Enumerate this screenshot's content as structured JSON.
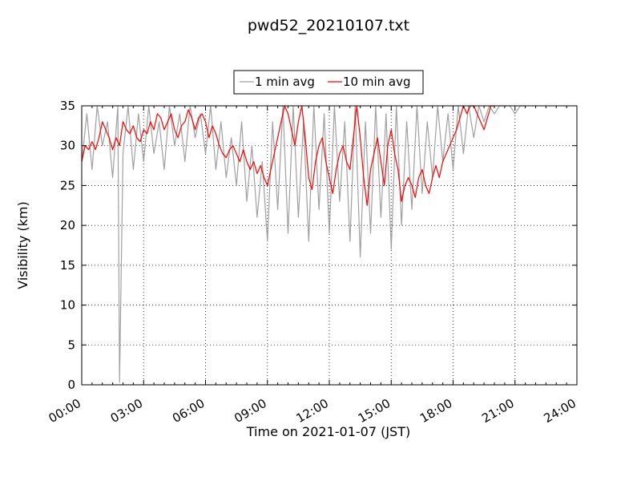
{
  "chart_data": {
    "type": "line",
    "title": "pwd52_20210107.txt",
    "xlabel": "Time on 2021-01-07 (JST)",
    "ylabel": "Visibility (km)",
    "xlim": [
      "00:00",
      "24:00"
    ],
    "ylim": [
      0,
      35
    ],
    "x_ticks": [
      "00:00",
      "03:00",
      "06:00",
      "09:00",
      "12:00",
      "15:00",
      "18:00",
      "21:00",
      "24:00"
    ],
    "y_ticks": [
      0,
      5,
      10,
      15,
      20,
      25,
      30,
      35
    ],
    "grid": true,
    "legend_position": "top-center",
    "series": [
      {
        "name": "1 min avg",
        "color": "#a0a0a0",
        "x": [
          "00:00",
          "00:15",
          "00:30",
          "00:45",
          "01:00",
          "01:15",
          "01:30",
          "01:45",
          "01:50",
          "02:00",
          "02:15",
          "02:30",
          "02:45",
          "03:00",
          "03:15",
          "03:30",
          "03:45",
          "04:00",
          "04:15",
          "04:30",
          "04:45",
          "05:00",
          "05:15",
          "05:30",
          "05:45",
          "06:00",
          "06:15",
          "06:30",
          "06:45",
          "07:00",
          "07:15",
          "07:30",
          "07:45",
          "08:00",
          "08:15",
          "08:30",
          "08:45",
          "09:00",
          "09:15",
          "09:30",
          "09:45",
          "10:00",
          "10:15",
          "10:30",
          "10:45",
          "11:00",
          "11:15",
          "11:30",
          "11:45",
          "12:00",
          "12:15",
          "12:30",
          "12:45",
          "13:00",
          "13:15",
          "13:30",
          "13:45",
          "14:00",
          "14:15",
          "14:30",
          "14:45",
          "15:00",
          "15:15",
          "15:30",
          "15:45",
          "16:00",
          "16:15",
          "16:30",
          "16:45",
          "17:00",
          "17:15",
          "17:30",
          "17:45",
          "18:00",
          "18:15",
          "18:30",
          "18:45",
          "19:00",
          "19:15",
          "19:30",
          "19:45",
          "20:00",
          "20:15",
          "20:30",
          "20:45",
          "21:00",
          "21:15",
          "21:30"
        ],
        "y": [
          28,
          34,
          27,
          35,
          30,
          33,
          26,
          35,
          0.3,
          29,
          35,
          27,
          34,
          28,
          35,
          29,
          33,
          27,
          35,
          30,
          34,
          28,
          35,
          31,
          34,
          29,
          35,
          27,
          33,
          26,
          31,
          25,
          33,
          23,
          30,
          21,
          28,
          18,
          33,
          22,
          35,
          19,
          35,
          21,
          33,
          18,
          35,
          22,
          34,
          19,
          35,
          23,
          33,
          18,
          35,
          16,
          33,
          19,
          35,
          21,
          34,
          17,
          35,
          20,
          33,
          22,
          35,
          24,
          33,
          26,
          35,
          28,
          34,
          27,
          35,
          29,
          35,
          31,
          35,
          33,
          35,
          34,
          35,
          35,
          35,
          34,
          35,
          35
        ]
      },
      {
        "name": "10 min avg",
        "color": "#ff0000",
        "x": [
          "00:00",
          "00:10",
          "00:20",
          "00:30",
          "00:40",
          "00:50",
          "01:00",
          "01:10",
          "01:20",
          "01:30",
          "01:40",
          "01:50",
          "02:00",
          "02:10",
          "02:20",
          "02:30",
          "02:40",
          "02:50",
          "03:00",
          "03:10",
          "03:20",
          "03:30",
          "03:40",
          "03:50",
          "04:00",
          "04:10",
          "04:20",
          "04:30",
          "04:40",
          "04:50",
          "05:00",
          "05:10",
          "05:20",
          "05:30",
          "05:40",
          "05:50",
          "06:00",
          "06:10",
          "06:20",
          "06:30",
          "06:40",
          "06:50",
          "07:00",
          "07:10",
          "07:20",
          "07:30",
          "07:40",
          "07:50",
          "08:00",
          "08:10",
          "08:20",
          "08:30",
          "08:40",
          "08:50",
          "09:00",
          "09:10",
          "09:20",
          "09:30",
          "09:40",
          "09:50",
          "10:00",
          "10:10",
          "10:20",
          "10:30",
          "10:40",
          "10:50",
          "11:00",
          "11:10",
          "11:20",
          "11:30",
          "11:40",
          "11:50",
          "12:00",
          "12:10",
          "12:20",
          "12:30",
          "12:40",
          "12:50",
          "13:00",
          "13:10",
          "13:20",
          "13:30",
          "13:40",
          "13:50",
          "14:00",
          "14:10",
          "14:20",
          "14:30",
          "14:40",
          "14:50",
          "15:00",
          "15:10",
          "15:20",
          "15:30",
          "15:40",
          "15:50",
          "16:00",
          "16:10",
          "16:20",
          "16:30",
          "16:40",
          "16:50",
          "17:00",
          "17:10",
          "17:20",
          "17:30",
          "17:40",
          "17:50",
          "18:00",
          "18:10",
          "18:20",
          "18:30",
          "18:40",
          "18:50",
          "19:00",
          "19:10",
          "19:20",
          "19:30",
          "19:40",
          "19:50",
          "20:00"
        ],
        "y": [
          28,
          30,
          29.5,
          30.5,
          29.5,
          31,
          33,
          32,
          31,
          29.5,
          31,
          30,
          33,
          32,
          31.5,
          32.5,
          31,
          30.5,
          32,
          31.5,
          33,
          32,
          34,
          33.5,
          32,
          33,
          34,
          32,
          31,
          32.5,
          33,
          34.5,
          33.5,
          32,
          33.5,
          34,
          33,
          31,
          32.5,
          31.5,
          30,
          29,
          28.5,
          29.5,
          30,
          29,
          28,
          29.5,
          28,
          27,
          28,
          26.5,
          27.5,
          26,
          25,
          27,
          29,
          31,
          33,
          35,
          34,
          32,
          30,
          33,
          35,
          31,
          26,
          24.5,
          28,
          30,
          31,
          28,
          26,
          24,
          27,
          29,
          30,
          28,
          27,
          31,
          35,
          31,
          26,
          22.5,
          27,
          29,
          31,
          28,
          25,
          30,
          32,
          29,
          27,
          23,
          25,
          26,
          25,
          23.5,
          26,
          27,
          25,
          24,
          26,
          27.5,
          26,
          28,
          29,
          30,
          31,
          32,
          33.5,
          35,
          34,
          35,
          35,
          34,
          33,
          32,
          33.5,
          35,
          35
        ]
      }
    ]
  }
}
